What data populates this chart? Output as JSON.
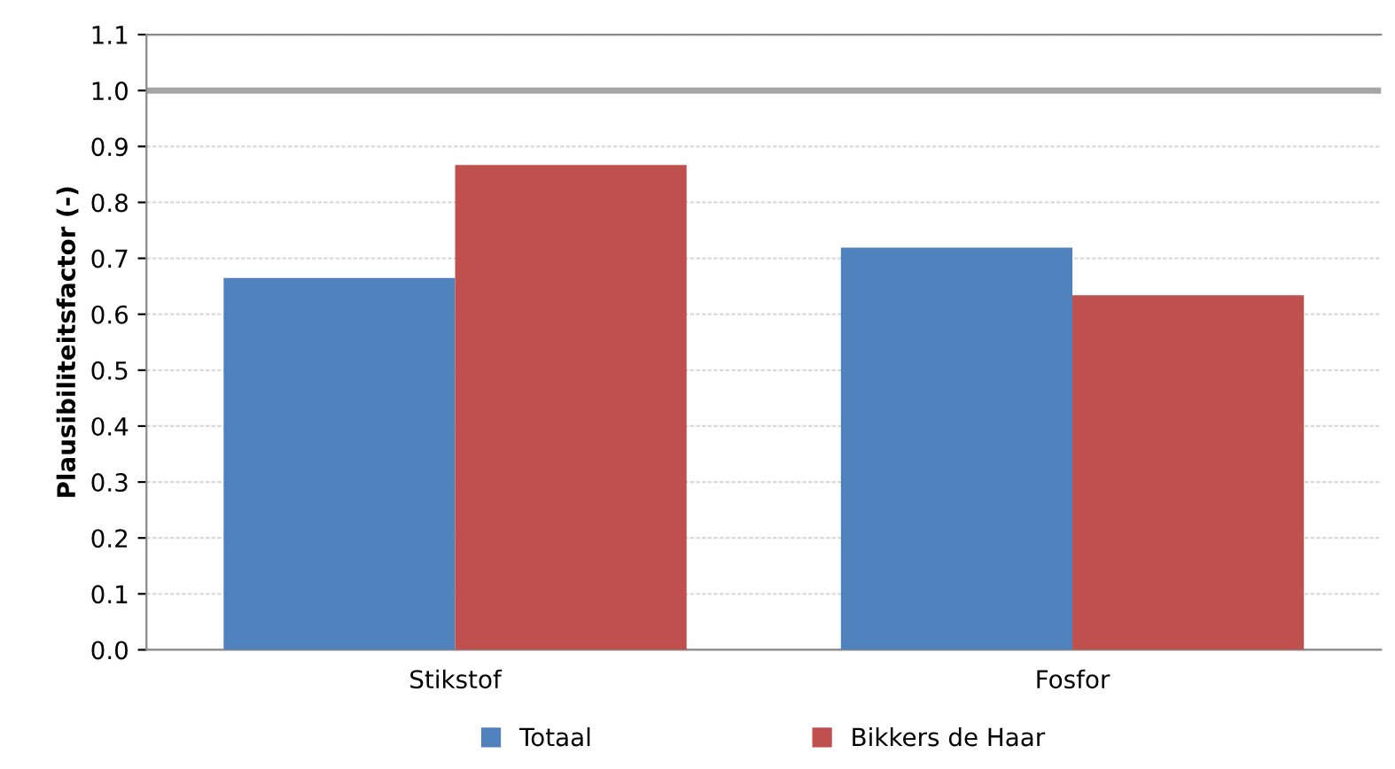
{
  "chart_data": {
    "type": "bar",
    "ylabel": "Plausibiliteitsfactor (-)",
    "categories": [
      "Stikstof",
      "Fosfor"
    ],
    "series": [
      {
        "name": "Totaal",
        "color": "#4f81bd",
        "values": [
          0.665,
          0.719
        ]
      },
      {
        "name": "Bikkers de Haar",
        "color": "#c0504d",
        "values": [
          0.867,
          0.634
        ]
      }
    ],
    "ylim": [
      0,
      1.1
    ],
    "yticks": [
      {
        "value": 0,
        "label": "0.0"
      },
      {
        "value": 0.1,
        "label": "0.1"
      },
      {
        "value": 0.2,
        "label": "0.2"
      },
      {
        "value": 0.3,
        "label": "0.3"
      },
      {
        "value": 0.4,
        "label": "0.4"
      },
      {
        "value": 0.5,
        "label": "0.5"
      },
      {
        "value": 0.6,
        "label": "0.6"
      },
      {
        "value": 0.7,
        "label": "0.7"
      },
      {
        "value": 0.8,
        "label": "0.8"
      },
      {
        "value": 0.9,
        "label": "0.9"
      },
      {
        "value": 1.0,
        "label": "1.0"
      },
      {
        "value": 1.1,
        "label": "1.1"
      }
    ],
    "grid": "y",
    "legend": "bottom",
    "ref_lines": [
      {
        "axis": "y",
        "value": 1.0,
        "color": "#a6a6a6"
      }
    ]
  }
}
